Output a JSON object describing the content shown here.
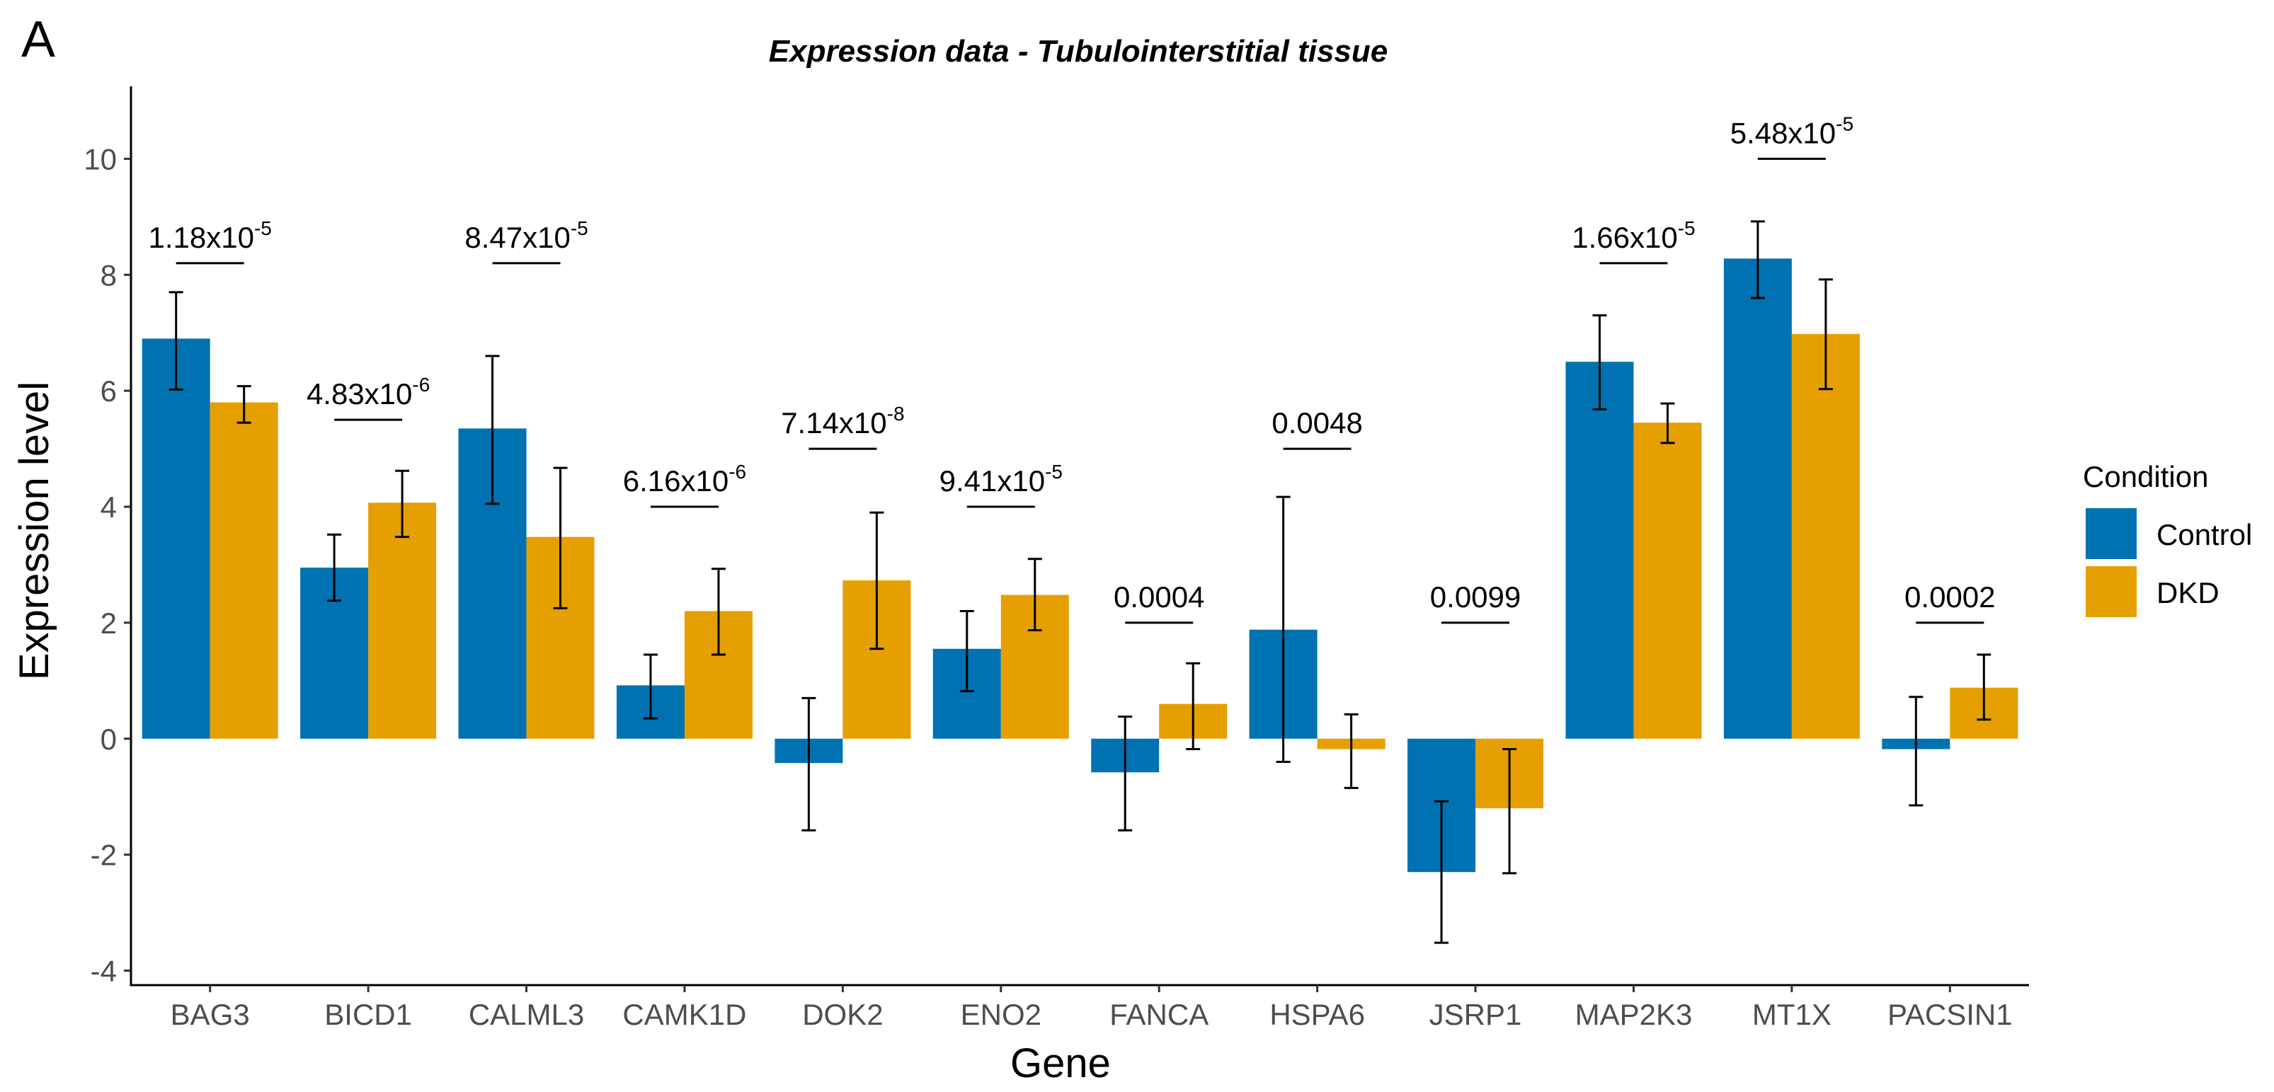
{
  "panel_label": "A",
  "chart_data": {
    "type": "bar",
    "title": "Expression data - Tubulointerstitial tissue",
    "xlabel": "Gene",
    "ylabel": "Expression level",
    "ylim": [
      -4.25,
      11.25
    ],
    "yticks": [
      -4,
      -2,
      0,
      2,
      4,
      6,
      8,
      10
    ],
    "ytick_labels": [
      "-4",
      "-2",
      "0",
      "2",
      "4",
      "6",
      "8",
      "10"
    ],
    "categories": [
      "BAG3",
      "BICD1",
      "CALML3",
      "CAMK1D",
      "DOK2",
      "ENO2",
      "FANCA",
      "HSPA6",
      "JSRP1",
      "MAP2K3",
      "MT1X",
      "PACSIN1"
    ],
    "series": [
      {
        "name": "Control",
        "color": "#0072B2",
        "values": [
          6.9,
          2.95,
          5.35,
          0.92,
          -0.42,
          1.55,
          -0.58,
          1.88,
          -2.3,
          6.5,
          8.28,
          -0.18
        ],
        "err_low": [
          6.02,
          2.38,
          4.05,
          0.35,
          -1.58,
          0.82,
          -1.58,
          -0.4,
          -3.52,
          5.68,
          7.6,
          -1.15
        ],
        "err_high": [
          7.7,
          3.52,
          6.6,
          1.45,
          0.7,
          2.2,
          0.38,
          4.17,
          -1.08,
          7.3,
          8.92,
          0.72
        ]
      },
      {
        "name": "DKD",
        "color": "#E69F00",
        "values": [
          5.8,
          4.07,
          3.48,
          2.2,
          2.73,
          2.48,
          0.6,
          -0.18,
          -1.2,
          5.45,
          6.98,
          0.88
        ],
        "err_low": [
          5.45,
          3.48,
          2.25,
          1.45,
          1.55,
          1.87,
          -0.18,
          -0.85,
          -2.32,
          5.1,
          6.03,
          0.33
        ],
        "err_high": [
          6.08,
          4.62,
          4.67,
          2.93,
          3.9,
          3.1,
          1.3,
          0.42,
          -0.18,
          5.78,
          7.92,
          1.45
        ]
      }
    ],
    "annotations": [
      {
        "gene": "BAG3",
        "y": 8.2,
        "base": "1.18x10",
        "exp": "-5"
      },
      {
        "gene": "BICD1",
        "y": 5.5,
        "base": "4.83x10",
        "exp": "-6"
      },
      {
        "gene": "CALML3",
        "y": 8.2,
        "base": "8.47x10",
        "exp": "-5"
      },
      {
        "gene": "CAMK1D",
        "y": 4.0,
        "base": "6.16x10",
        "exp": "-6"
      },
      {
        "gene": "DOK2",
        "y": 5.0,
        "base": "7.14x10",
        "exp": "-8"
      },
      {
        "gene": "ENO2",
        "y": 4.0,
        "base": "9.41x10",
        "exp": "-5"
      },
      {
        "gene": "FANCA",
        "y": 2.0,
        "base": "0.0004",
        "exp": ""
      },
      {
        "gene": "HSPA6",
        "y": 5.0,
        "base": "0.0048",
        "exp": ""
      },
      {
        "gene": "JSRP1",
        "y": 2.0,
        "base": "0.0099",
        "exp": ""
      },
      {
        "gene": "MAP2K3",
        "y": 8.2,
        "base": "1.66x10",
        "exp": "-5"
      },
      {
        "gene": "MT1X",
        "y": 10.0,
        "base": "5.48x10",
        "exp": "-5"
      },
      {
        "gene": "PACSIN1",
        "y": 2.0,
        "base": "0.0002",
        "exp": ""
      }
    ],
    "legend": {
      "title": "Condition",
      "position": "right",
      "entries": [
        "Control",
        "DKD"
      ]
    }
  }
}
